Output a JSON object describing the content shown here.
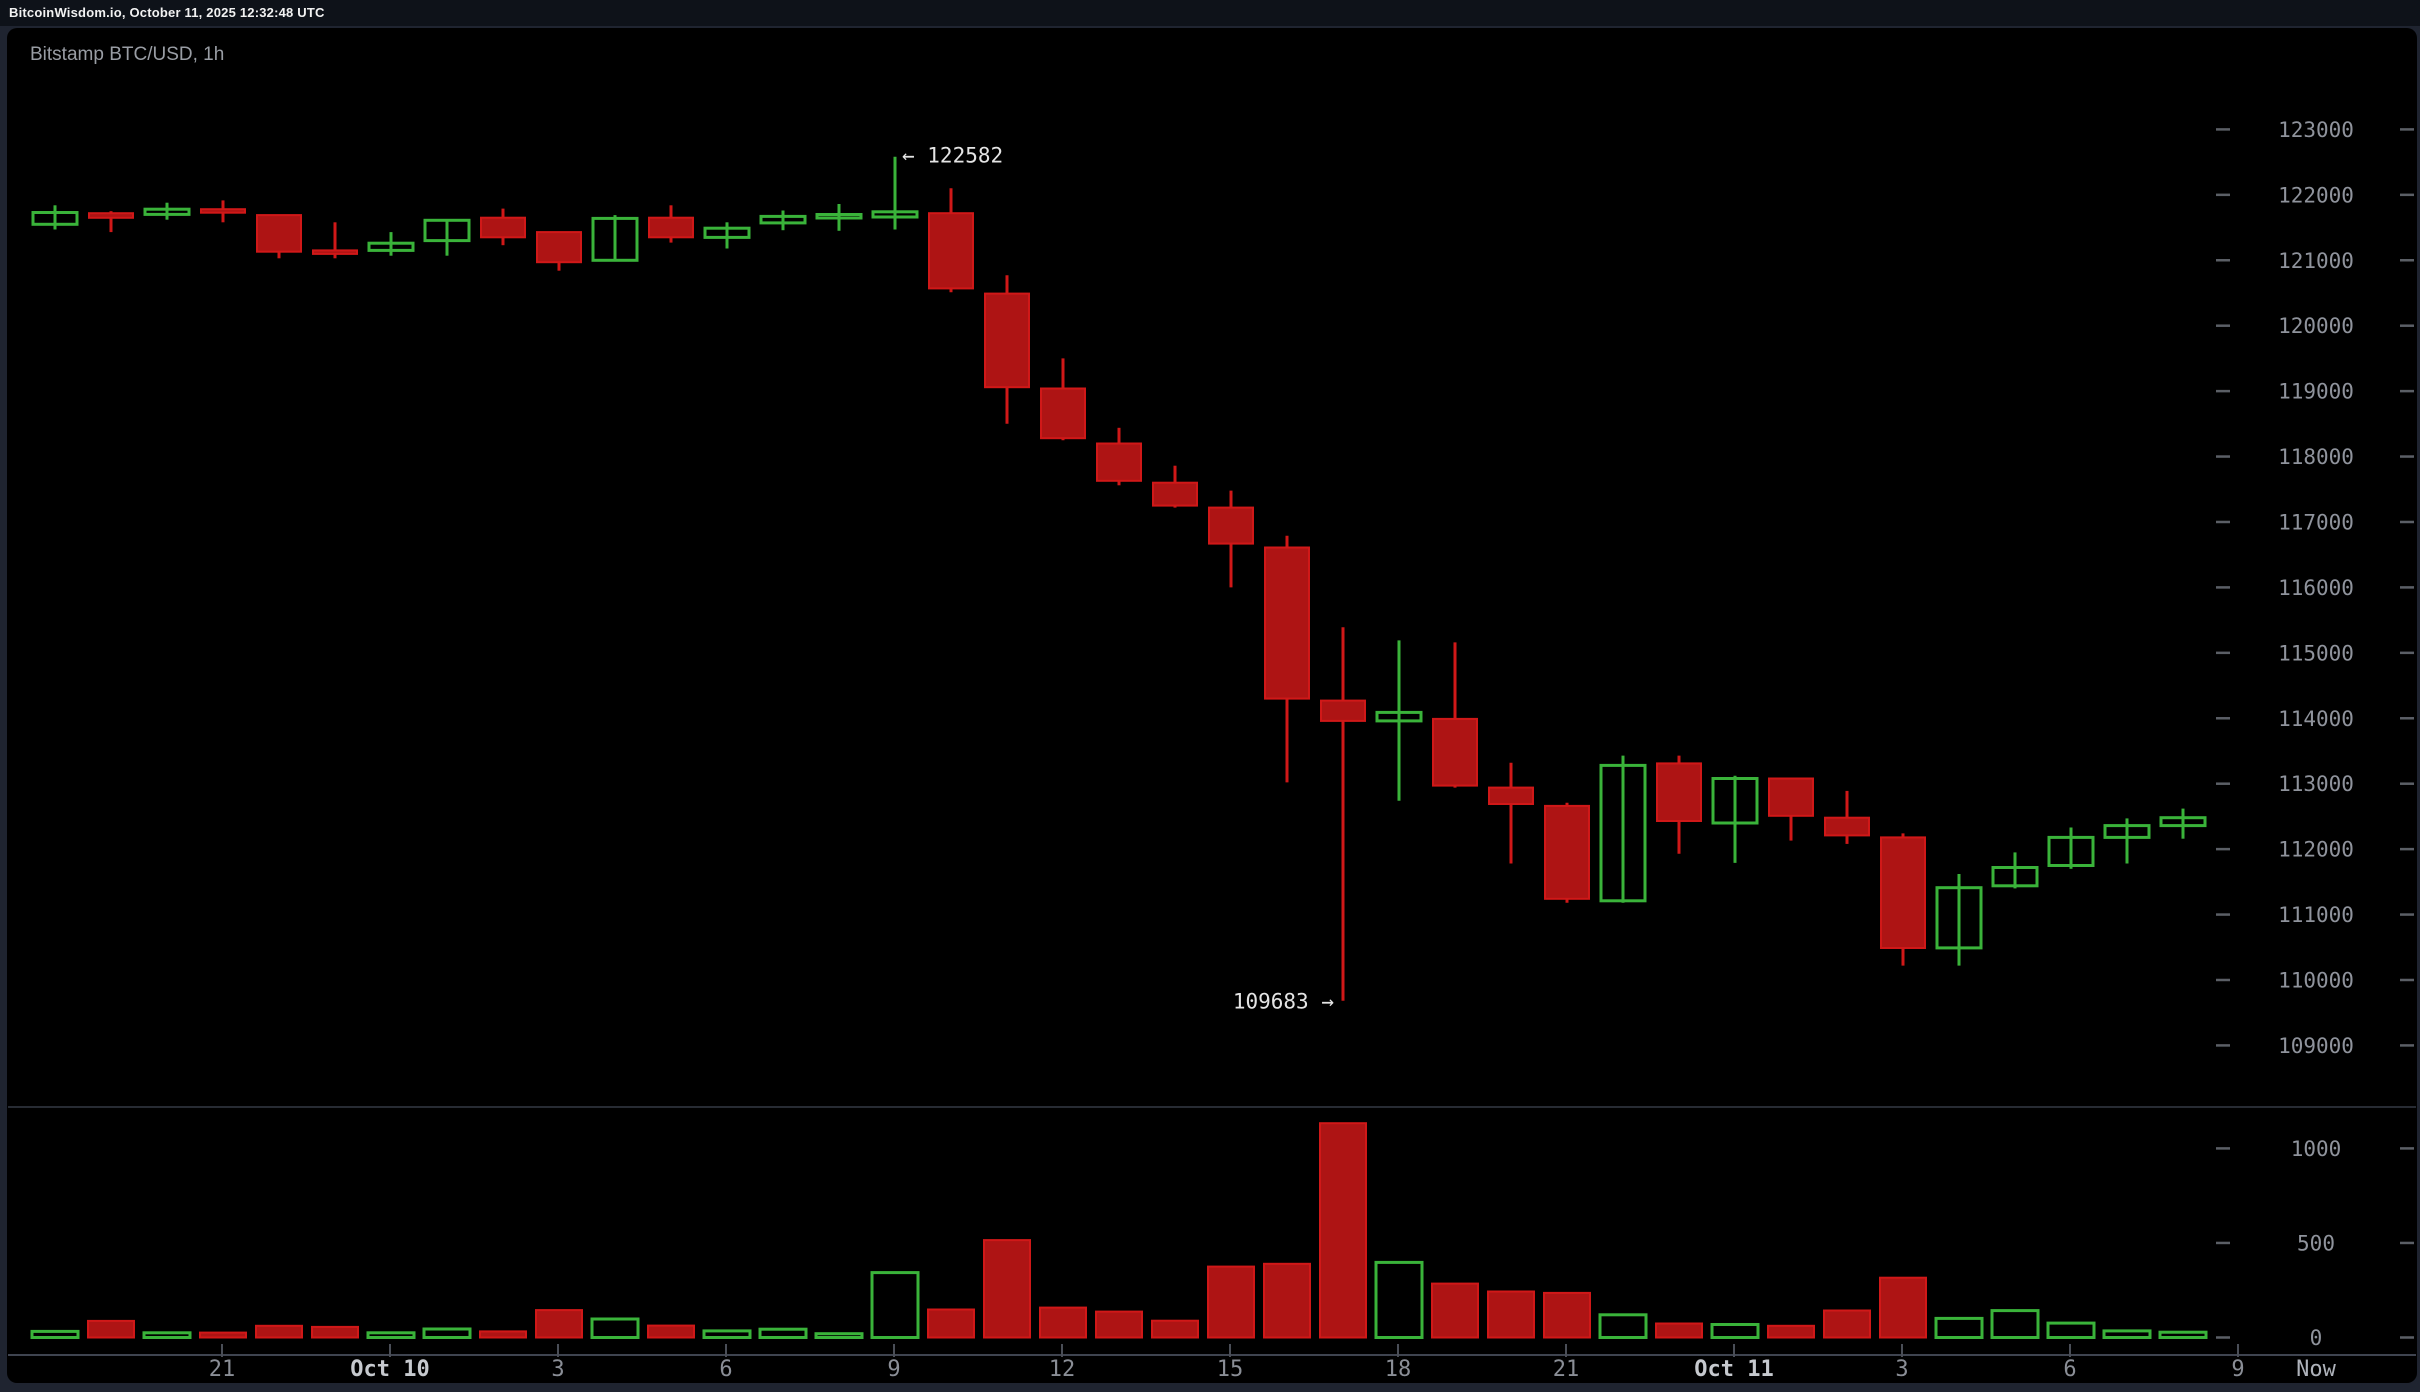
{
  "header": {
    "text": "BitcoinWisdom.io, October 11, 2025 12:32:48 UTC"
  },
  "title": "Bitstamp BTC/USD, 1h",
  "colors": {
    "page_bg": "#1f2430",
    "header_bg": "#0e1219",
    "header_text": "#f2f2f2",
    "panel_bg": "#000000",
    "title_text": "#999da4",
    "up": "#3ab33a",
    "down_fill": "#ae1414",
    "down_stroke": "#d01818",
    "axis_text": "#8f939c",
    "hour_label": "#8a8e96",
    "month_label": "#c6c9ce",
    "now_label": "#aeb2ba",
    "annotation": "#e4e4e4",
    "tick_dash": "#5b5f66",
    "axis_tick": "#4a4e57",
    "separator_line": "#272b33",
    "axis_line": "#3f4450"
  },
  "chart_data": {
    "type": "candlestick",
    "title": "Bitstamp BTC/USD, 1h",
    "legend_position": "none",
    "grid": false,
    "price_axis": {
      "side": "right",
      "min": 109000,
      "max": 123000,
      "step": 1000,
      "tick_labels": [
        "123000",
        "122000",
        "121000",
        "120000",
        "119000",
        "118000",
        "117000",
        "116000",
        "115000",
        "114000",
        "113000",
        "112000",
        "111000",
        "110000",
        "109000"
      ]
    },
    "volume_axis": {
      "side": "right",
      "min": 0,
      "max": 1200,
      "tick_values": [
        1000,
        500,
        0
      ],
      "tick_labels": [
        "1000",
        "500",
        "0"
      ]
    },
    "x_axis": {
      "labels": [
        {
          "text": "21",
          "bold": false
        },
        {
          "text": "Oct 10",
          "bold": true
        },
        {
          "text": "3",
          "bold": false
        },
        {
          "text": "6",
          "bold": false
        },
        {
          "text": "9",
          "bold": false
        },
        {
          "text": "12",
          "bold": false
        },
        {
          "text": "15",
          "bold": false
        },
        {
          "text": "18",
          "bold": false
        },
        {
          "text": "21",
          "bold": false
        },
        {
          "text": "Oct 11",
          "bold": true
        },
        {
          "text": "3",
          "bold": false
        },
        {
          "text": "6",
          "bold": false
        },
        {
          "text": "9",
          "bold": false
        }
      ],
      "now_label": "Now"
    },
    "high_annotation": {
      "text": "← 122582",
      "value": 122582
    },
    "low_annotation": {
      "text": "109683 →",
      "value": 109683
    },
    "candles_format": [
      "open",
      "high",
      "low",
      "close",
      "volume"
    ],
    "candles": [
      [
        121550,
        121840,
        121470,
        121730,
        32
      ],
      [
        121720,
        121750,
        121430,
        121650,
        88
      ],
      [
        121700,
        121880,
        121620,
        121780,
        25
      ],
      [
        121780,
        121915,
        121580,
        121730,
        26
      ],
      [
        121690,
        121700,
        121030,
        121130,
        62
      ],
      [
        121150,
        121580,
        121030,
        121100,
        56
      ],
      [
        121150,
        121430,
        121070,
        121260,
        25
      ],
      [
        121300,
        121610,
        121070,
        121610,
        45
      ],
      [
        121650,
        121790,
        121230,
        121350,
        32
      ],
      [
        121430,
        121440,
        120840,
        120970,
        145
      ],
      [
        121000,
        121690,
        120990,
        121640,
        98
      ],
      [
        121650,
        121840,
        121270,
        121350,
        63
      ],
      [
        121350,
        121580,
        121180,
        121490,
        35
      ],
      [
        121570,
        121760,
        121460,
        121670,
        44
      ],
      [
        121650,
        121860,
        121450,
        121700,
        20
      ],
      [
        121660,
        122582,
        121470,
        121740,
        343
      ],
      [
        121720,
        122100,
        120510,
        120570,
        148
      ],
      [
        120490,
        120770,
        118500,
        119060,
        515
      ],
      [
        119040,
        119500,
        118250,
        118280,
        158
      ],
      [
        118200,
        118440,
        117560,
        117630,
        137
      ],
      [
        117600,
        117860,
        117220,
        117250,
        89
      ],
      [
        117220,
        117480,
        116000,
        116670,
        375
      ],
      [
        116610,
        116790,
        113020,
        114300,
        390
      ],
      [
        114270,
        115390,
        109683,
        113960,
        1133
      ],
      [
        113960,
        115190,
        112740,
        114090,
        397
      ],
      [
        113990,
        115160,
        112940,
        112970,
        285
      ],
      [
        112940,
        113320,
        111780,
        112690,
        243
      ],
      [
        112660,
        112710,
        111180,
        111240,
        236
      ],
      [
        111210,
        113430,
        111180,
        113280,
        120
      ],
      [
        113310,
        113430,
        111930,
        112430,
        74
      ],
      [
        112400,
        113120,
        111790,
        113080,
        69
      ],
      [
        113080,
        113090,
        112130,
        112510,
        62
      ],
      [
        112480,
        112890,
        112080,
        112210,
        143
      ],
      [
        112180,
        112240,
        110220,
        110490,
        316
      ],
      [
        110490,
        111620,
        110220,
        111410,
        101
      ],
      [
        111440,
        111950,
        111400,
        111720,
        142
      ],
      [
        111750,
        112330,
        111700,
        112180,
        76
      ],
      [
        112180,
        112470,
        111780,
        112360,
        35
      ],
      [
        112360,
        112620,
        112160,
        112480,
        28
      ]
    ]
  }
}
